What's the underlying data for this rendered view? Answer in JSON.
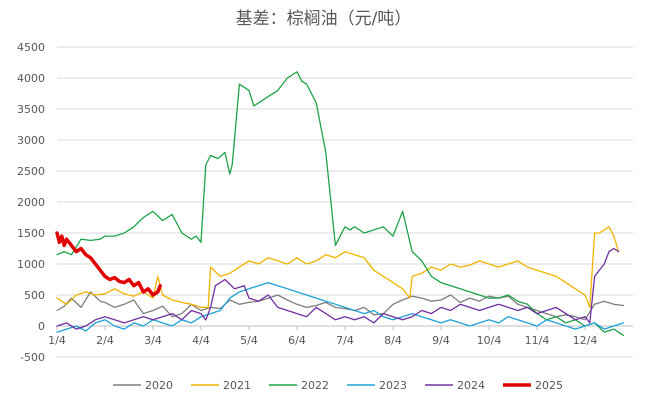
{
  "chart_data": {
    "type": "line",
    "title": "基差：棕榈油（元/吨）",
    "xlabel": "",
    "ylabel": "",
    "ylim": [
      -500,
      4500
    ],
    "yticks": [
      -500,
      0,
      500,
      1000,
      1500,
      2000,
      2500,
      3000,
      3500,
      4000,
      4500
    ],
    "xticks": [
      {
        "label": "1/4",
        "month": 1
      },
      {
        "label": "2/4",
        "month": 2
      },
      {
        "label": "3/4",
        "month": 3
      },
      {
        "label": "4/4",
        "month": 4
      },
      {
        "label": "5/4",
        "month": 5
      },
      {
        "label": "6/4",
        "month": 6
      },
      {
        "label": "7/4",
        "month": 7
      },
      {
        "label": "8/4",
        "month": 8
      },
      {
        "label": "9/4",
        "month": 9
      },
      {
        "label": "10/4",
        "month": 10
      },
      {
        "label": "11/4",
        "month": 11
      },
      {
        "label": "12/4",
        "month": 12
      }
    ],
    "xlim": [
      1,
      13
    ],
    "grid": true,
    "legend": "bottom",
    "series": [
      {
        "name": "2020",
        "color": "#7f7f7f",
        "width": 1.3,
        "x": [
          1,
          1.15,
          1.3,
          1.5,
          1.7,
          1.9,
          2,
          2.2,
          2.4,
          2.6,
          2.8,
          3,
          3.2,
          3.4,
          3.6,
          3.8,
          4,
          4.2,
          4.4,
          4.6,
          4.8,
          5,
          5.2,
          5.4,
          5.6,
          5.8,
          6,
          6.2,
          6.4,
          6.6,
          6.8,
          7,
          7.2,
          7.4,
          7.6,
          7.8,
          8,
          8.2,
          8.4,
          8.6,
          8.8,
          9,
          9.2,
          9.4,
          9.6,
          9.8,
          10,
          10.2,
          10.4,
          10.6,
          10.8,
          11,
          11.2,
          11.4,
          11.6,
          11.8,
          12,
          12.2,
          12.4,
          12.6,
          12.8
        ],
        "y": [
          250,
          320,
          450,
          300,
          550,
          400,
          380,
          300,
          350,
          420,
          200,
          250,
          320,
          150,
          200,
          350,
          250,
          300,
          280,
          420,
          350,
          380,
          400,
          450,
          500,
          420,
          350,
          300,
          330,
          380,
          300,
          280,
          250,
          300,
          180,
          200,
          350,
          420,
          480,
          450,
          400,
          420,
          500,
          380,
          450,
          400,
          480,
          450,
          480,
          350,
          300,
          250,
          200,
          150,
          180,
          150,
          100,
          350,
          400,
          350,
          330
        ]
      },
      {
        "name": "2021",
        "color": "#f0b400",
        "width": 1.3,
        "x": [
          1,
          1.2,
          1.4,
          1.6,
          1.8,
          2,
          2.2,
          2.4,
          2.6,
          2.8,
          3,
          3.1,
          3.2,
          3.4,
          3.6,
          3.8,
          4,
          4.15,
          4.2,
          4.4,
          4.6,
          4.8,
          5,
          5.2,
          5.4,
          5.6,
          5.8,
          6,
          6.2,
          6.4,
          6.6,
          6.8,
          7,
          7.2,
          7.4,
          7.6,
          7.8,
          8,
          8.2,
          8.35,
          8.4,
          8.6,
          8.8,
          9,
          9.2,
          9.4,
          9.6,
          9.8,
          10,
          10.2,
          10.4,
          10.6,
          10.8,
          11,
          11.2,
          11.4,
          11.6,
          11.8,
          12,
          12.1,
          12.2,
          12.3,
          12.4,
          12.5,
          12.6,
          12.7
        ],
        "y": [
          450,
          350,
          500,
          550,
          500,
          520,
          600,
          520,
          480,
          550,
          450,
          800,
          500,
          420,
          380,
          350,
          300,
          300,
          950,
          800,
          850,
          950,
          1050,
          1000,
          1100,
          1050,
          1000,
          1100,
          1000,
          1050,
          1150,
          1100,
          1200,
          1150,
          1100,
          900,
          800,
          700,
          600,
          450,
          800,
          850,
          950,
          900,
          1000,
          950,
          980,
          1050,
          1000,
          950,
          1000,
          1050,
          950,
          900,
          850,
          800,
          700,
          600,
          500,
          300,
          1500,
          1500,
          1550,
          1600,
          1450,
          1200
        ]
      },
      {
        "name": "2022",
        "color": "#1fa34a",
        "width": 1.3,
        "x": [
          1,
          1.15,
          1.3,
          1.5,
          1.7,
          1.9,
          2,
          2.2,
          2.4,
          2.6,
          2.8,
          3,
          3.2,
          3.4,
          3.6,
          3.8,
          3.9,
          4,
          4.1,
          4.2,
          4.35,
          4.5,
          4.6,
          4.65,
          4.8,
          5,
          5.1,
          5.2,
          5.4,
          5.6,
          5.8,
          6,
          6.1,
          6.2,
          6.4,
          6.6,
          6.8,
          7,
          7.1,
          7.2,
          7.4,
          7.6,
          7.8,
          8,
          8.2,
          8.4,
          8.6,
          8.8,
          9,
          9.2,
          9.4,
          9.6,
          9.8,
          10,
          10.2,
          10.4,
          10.6,
          10.8,
          11,
          11.2,
          11.4,
          11.6,
          11.8,
          12,
          12.2,
          12.4,
          12.6,
          12.8
        ],
        "y": [
          1150,
          1200,
          1150,
          1400,
          1380,
          1400,
          1450,
          1450,
          1500,
          1600,
          1750,
          1850,
          1700,
          1800,
          1500,
          1400,
          1450,
          1350,
          2600,
          2750,
          2700,
          2800,
          2450,
          2600,
          3900,
          3800,
          3550,
          3600,
          3700,
          3800,
          4000,
          4100,
          3950,
          3900,
          3600,
          2800,
          1300,
          1600,
          1550,
          1600,
          1500,
          1550,
          1600,
          1450,
          1850,
          1200,
          1050,
          800,
          700,
          650,
          600,
          550,
          500,
          450,
          450,
          500,
          400,
          350,
          200,
          100,
          150,
          50,
          100,
          0,
          50,
          -100,
          -50,
          -150
        ]
      },
      {
        "name": "2023",
        "color": "#1ea2d8",
        "width": 1.3,
        "x": [
          1,
          1.2,
          1.4,
          1.6,
          1.8,
          2,
          2.2,
          2.4,
          2.6,
          2.8,
          3,
          3.2,
          3.4,
          3.6,
          3.8,
          4,
          4.2,
          4.4,
          4.6,
          4.8,
          5,
          5.2,
          5.4,
          5.6,
          5.8,
          6,
          6.2,
          6.4,
          6.6,
          6.8,
          7,
          7.2,
          7.4,
          7.6,
          7.8,
          8,
          8.2,
          8.4,
          8.6,
          8.8,
          9,
          9.2,
          9.4,
          9.6,
          9.8,
          10,
          10.2,
          10.4,
          10.6,
          10.8,
          11,
          11.2,
          11.4,
          11.6,
          11.8,
          12,
          12.2,
          12.4,
          12.6,
          12.8
        ],
        "y": [
          -100,
          -50,
          0,
          -80,
          50,
          100,
          0,
          -50,
          50,
          0,
          100,
          50,
          0,
          100,
          50,
          150,
          200,
          250,
          450,
          550,
          600,
          650,
          700,
          650,
          600,
          550,
          500,
          450,
          400,
          350,
          300,
          250,
          200,
          250,
          150,
          100,
          150,
          200,
          150,
          100,
          50,
          100,
          50,
          0,
          50,
          100,
          50,
          150,
          100,
          50,
          0,
          100,
          50,
          0,
          -50,
          0,
          50,
          -50,
          0,
          50
        ]
      },
      {
        "name": "2024",
        "color": "#7030a0",
        "width": 1.3,
        "x": [
          1,
          1.2,
          1.4,
          1.6,
          1.8,
          2,
          2.2,
          2.4,
          2.6,
          2.8,
          3,
          3.2,
          3.4,
          3.6,
          3.8,
          4,
          4.1,
          4.2,
          4.3,
          4.5,
          4.7,
          4.9,
          5,
          5.2,
          5.4,
          5.6,
          5.8,
          6,
          6.2,
          6.4,
          6.6,
          6.8,
          7,
          7.2,
          7.4,
          7.6,
          7.8,
          8,
          8.2,
          8.4,
          8.6,
          8.8,
          9,
          9.2,
          9.4,
          9.6,
          9.8,
          10,
          10.2,
          10.4,
          10.6,
          10.8,
          11,
          11.2,
          11.4,
          11.6,
          11.8,
          12,
          12.1,
          12.2,
          12.4,
          12.5,
          12.6,
          12.7
        ],
        "y": [
          0,
          50,
          -50,
          0,
          100,
          150,
          100,
          50,
          100,
          150,
          100,
          150,
          200,
          100,
          250,
          200,
          100,
          300,
          650,
          750,
          600,
          650,
          450,
          400,
          500,
          300,
          250,
          200,
          150,
          300,
          200,
          100,
          150,
          100,
          150,
          50,
          200,
          150,
          100,
          150,
          250,
          200,
          300,
          250,
          350,
          300,
          250,
          300,
          350,
          300,
          250,
          300,
          200,
          250,
          300,
          200,
          100,
          150,
          50,
          800,
          1000,
          1200,
          1250,
          1200
        ]
      },
      {
        "name": "2025",
        "color": "#e00000",
        "width": 3.5,
        "x": [
          1,
          1.05,
          1.1,
          1.15,
          1.2,
          1.3,
          1.4,
          1.5,
          1.6,
          1.7,
          1.8,
          1.9,
          2,
          2.1,
          2.2,
          2.3,
          2.4,
          2.5,
          2.6,
          2.7,
          2.8,
          2.9,
          3,
          3.1,
          3.15
        ],
        "y": [
          1500,
          1350,
          1450,
          1300,
          1400,
          1300,
          1200,
          1250,
          1150,
          1100,
          1000,
          900,
          800,
          750,
          780,
          720,
          700,
          750,
          650,
          700,
          550,
          600,
          500,
          550,
          650
        ]
      }
    ]
  }
}
